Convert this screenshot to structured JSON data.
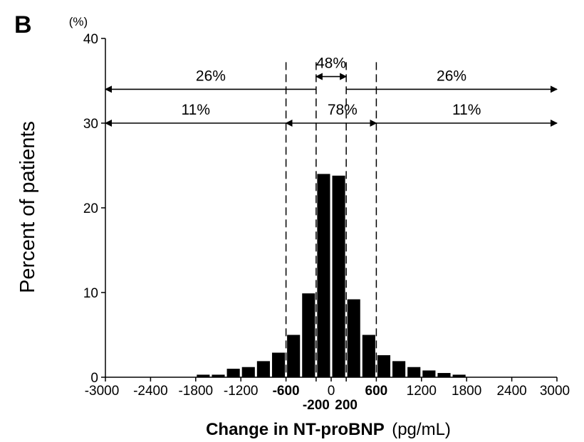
{
  "panel_label": "B",
  "chart_data": {
    "type": "bar",
    "ylabel": "Percent of patients",
    "y_unit": "(%)",
    "xlabel": {
      "main": "Change in NT-proBNP",
      "unit": "(pg/mL)"
    },
    "ylim": [
      0,
      40
    ],
    "yticks": [
      0,
      10,
      20,
      30,
      40
    ],
    "xlim": [
      -3000,
      3000
    ],
    "xticks": [
      {
        "value": -3000,
        "label": "-3000",
        "bold": false,
        "row": 0
      },
      {
        "value": -2400,
        "label": "-2400",
        "bold": false,
        "row": 0
      },
      {
        "value": -1800,
        "label": "-1800",
        "bold": false,
        "row": 0
      },
      {
        "value": -1200,
        "label": "-1200",
        "bold": false,
        "row": 0
      },
      {
        "value": -600,
        "label": "-600",
        "bold": true,
        "row": 0
      },
      {
        "value": -200,
        "label": "-200",
        "bold": true,
        "row": 1
      },
      {
        "value": 0,
        "label": "0",
        "bold": false,
        "row": 0
      },
      {
        "value": 200,
        "label": "200",
        "bold": true,
        "row": 1
      },
      {
        "value": 600,
        "label": "600",
        "bold": true,
        "row": 0
      },
      {
        "value": 1200,
        "label": "1200",
        "bold": false,
        "row": 0
      },
      {
        "value": 1800,
        "label": "1800",
        "bold": false,
        "row": 0
      },
      {
        "value": 2400,
        "label": "2400",
        "bold": false,
        "row": 0
      },
      {
        "value": 3000,
        "label": "3000",
        "bold": false,
        "row": 0
      }
    ],
    "bin_width": 200,
    "bins": [
      {
        "from": -1800,
        "to": -1600,
        "value": 0.3
      },
      {
        "from": -1600,
        "to": -1400,
        "value": 0.3
      },
      {
        "from": -1400,
        "to": -1200,
        "value": 1.0
      },
      {
        "from": -1200,
        "to": -1000,
        "value": 1.2
      },
      {
        "from": -1000,
        "to": -800,
        "value": 1.9
      },
      {
        "from": -800,
        "to": -600,
        "value": 2.9
      },
      {
        "from": -600,
        "to": -400,
        "value": 5.0
      },
      {
        "from": -400,
        "to": -200,
        "value": 9.9
      },
      {
        "from": -200,
        "to": 0,
        "value": 24.0
      },
      {
        "from": 0,
        "to": 200,
        "value": 23.8
      },
      {
        "from": 200,
        "to": 400,
        "value": 9.2
      },
      {
        "from": 400,
        "to": 600,
        "value": 5.0
      },
      {
        "from": 600,
        "to": 800,
        "value": 2.6
      },
      {
        "from": 800,
        "to": 1000,
        "value": 1.9
      },
      {
        "from": 1000,
        "to": 1200,
        "value": 1.2
      },
      {
        "from": 1200,
        "to": 1400,
        "value": 0.8
      },
      {
        "from": 1400,
        "to": 1600,
        "value": 0.5
      },
      {
        "from": 1600,
        "to": 1800,
        "value": 0.3
      }
    ],
    "reference_lines": [
      -600,
      -200,
      200,
      600
    ],
    "annotations": [
      {
        "label": "26%",
        "from": -3000,
        "to": -200,
        "y": 34,
        "label_at": -1600,
        "heads": "left"
      },
      {
        "label": "48%",
        "from": -200,
        "to": 200,
        "y": 35.5,
        "label_at": 0,
        "heads": "both"
      },
      {
        "label": "26%",
        "from": 200,
        "to": 3000,
        "y": 34,
        "label_at": 1600,
        "heads": "right"
      },
      {
        "label": "11%",
        "from": -3000,
        "to": -600,
        "y": 30,
        "label_at": -1800,
        "heads": "left"
      },
      {
        "label": "78%",
        "from": -600,
        "to": 600,
        "y": 30,
        "label_at": 150,
        "heads": "both"
      },
      {
        "label": "11%",
        "from": 600,
        "to": 3000,
        "y": 30,
        "label_at": 1800,
        "heads": "right"
      }
    ]
  }
}
